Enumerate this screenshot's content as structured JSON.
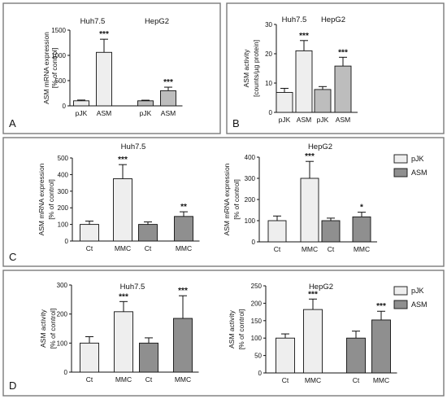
{
  "panel_labels": {
    "A": "A",
    "B": "B",
    "C": "C",
    "D": "D"
  },
  "colors": {
    "ctrl": "#eeeeee",
    "mid": "#bdbdbd",
    "dark": "#8f8f8f"
  },
  "legend": {
    "pjk": "pJK",
    "asm": "ASM"
  },
  "chart_data": [
    {
      "panel": "A",
      "type": "bar",
      "ylabel_lines": [
        "ASM mRNA expression",
        "[% of control]"
      ],
      "ylim": [
        0,
        1500
      ],
      "yticks": [
        0,
        500,
        1000,
        1500
      ],
      "groups": [
        {
          "name": "Huh7.5",
          "bars": [
            {
              "label": "pJK",
              "value": 100,
              "error": 15,
              "sig": "",
              "color": "#eeeeee"
            },
            {
              "label": "ASM",
              "value": 1060,
              "error": 260,
              "sig": "***",
              "color": "#eeeeee"
            }
          ]
        },
        {
          "name": "HepG2",
          "bars": [
            {
              "label": "pJK",
              "value": 100,
              "error": 12,
              "sig": "",
              "color": "#bdbdbd"
            },
            {
              "label": "ASM",
              "value": 300,
              "error": 70,
              "sig": "***",
              "color": "#bdbdbd"
            }
          ]
        }
      ]
    },
    {
      "panel": "B",
      "type": "bar",
      "ylabel_lines": [
        "ASM activity",
        "[counts/µg protein]"
      ],
      "ylim": [
        0,
        30
      ],
      "yticks": [
        0,
        10,
        20,
        30
      ],
      "groups": [
        {
          "name": "Huh7.5",
          "bars": [
            {
              "label": "pJK",
              "value": 6.8,
              "error": 1.4,
              "sig": "",
              "color": "#eeeeee"
            },
            {
              "label": "ASM",
              "value": 21,
              "error": 3.5,
              "sig": "***",
              "color": "#eeeeee"
            }
          ]
        },
        {
          "name": "HepG2",
          "bars": [
            {
              "label": "pJK",
              "value": 7.8,
              "error": 1.0,
              "sig": "",
              "color": "#bdbdbd"
            },
            {
              "label": "ASM",
              "value": 15.8,
              "error": 3.0,
              "sig": "***",
              "color": "#bdbdbd"
            }
          ]
        }
      ]
    },
    {
      "panel": "C-left",
      "type": "bar",
      "title": "Huh7.5",
      "ylabel_lines": [
        "ASM mRNA expression",
        "[% of control]"
      ],
      "ylim": [
        0,
        500
      ],
      "yticks": [
        0,
        100,
        200,
        300,
        400,
        500
      ],
      "groups": [
        {
          "name": "",
          "bars": [
            {
              "label": "Ct",
              "value": 100,
              "error": 20,
              "sig": "",
              "color": "#eeeeee"
            },
            {
              "label": "MMC",
              "value": 375,
              "error": 85,
              "sig": "***",
              "color": "#eeeeee"
            }
          ]
        },
        {
          "name": "",
          "bars": [
            {
              "label": "Ct",
              "value": 100,
              "error": 15,
              "sig": "",
              "color": "#8f8f8f"
            },
            {
              "label": "MMC",
              "value": 148,
              "error": 28,
              "sig": "**",
              "color": "#8f8f8f"
            }
          ]
        }
      ]
    },
    {
      "panel": "C-right",
      "type": "bar",
      "title": "HepG2",
      "ylabel_lines": [
        "ASM mRNA expression",
        "[% of control]"
      ],
      "ylim": [
        0,
        400
      ],
      "yticks": [
        0,
        100,
        200,
        300,
        400
      ],
      "groups": [
        {
          "name": "",
          "bars": [
            {
              "label": "Ct",
              "value": 100,
              "error": 22,
              "sig": "",
              "color": "#eeeeee"
            },
            {
              "label": "MMC",
              "value": 300,
              "error": 80,
              "sig": "***",
              "color": "#eeeeee"
            }
          ]
        },
        {
          "name": "",
          "bars": [
            {
              "label": "Ct",
              "value": 100,
              "error": 12,
              "sig": "",
              "color": "#8f8f8f"
            },
            {
              "label": "MMC",
              "value": 118,
              "error": 22,
              "sig": "*",
              "color": "#8f8f8f"
            }
          ]
        }
      ]
    },
    {
      "panel": "D-left",
      "type": "bar",
      "title": "Huh7.5",
      "ylabel_lines": [
        "ASM activity",
        "[% of control]"
      ],
      "ylim": [
        0,
        300
      ],
      "yticks": [
        0,
        100,
        200,
        300
      ],
      "groups": [
        {
          "name": "",
          "bars": [
            {
              "label": "Ct",
              "value": 100,
              "error": 22,
              "sig": "",
              "color": "#eeeeee"
            },
            {
              "label": "MMC",
              "value": 208,
              "error": 35,
              "sig": "***",
              "color": "#eeeeee"
            }
          ]
        },
        {
          "name": "",
          "bars": [
            {
              "label": "Ct",
              "value": 100,
              "error": 18,
              "sig": "",
              "color": "#8f8f8f"
            },
            {
              "label": "MMC",
              "value": 185,
              "error": 78,
              "sig": "***",
              "color": "#8f8f8f"
            }
          ]
        }
      ]
    },
    {
      "panel": "D-right",
      "type": "bar",
      "title": "HepG2",
      "ylabel_lines": [
        "ASM activity",
        "[% of control]"
      ],
      "ylim": [
        0,
        250
      ],
      "yticks": [
        0,
        50,
        100,
        150,
        200,
        250
      ],
      "groups": [
        {
          "name": "",
          "bars": [
            {
              "label": "Ct",
              "value": 100,
              "error": 12,
              "sig": "",
              "color": "#eeeeee"
            },
            {
              "label": "MMC",
              "value": 182,
              "error": 30,
              "sig": "***",
              "color": "#eeeeee"
            }
          ]
        },
        {
          "name": "",
          "bars": [
            {
              "label": "Ct",
              "value": 100,
              "error": 20,
              "sig": "",
              "color": "#8f8f8f"
            },
            {
              "label": "MMC",
              "value": 152,
              "error": 25,
              "sig": "***",
              "color": "#8f8f8f"
            }
          ]
        }
      ]
    }
  ]
}
